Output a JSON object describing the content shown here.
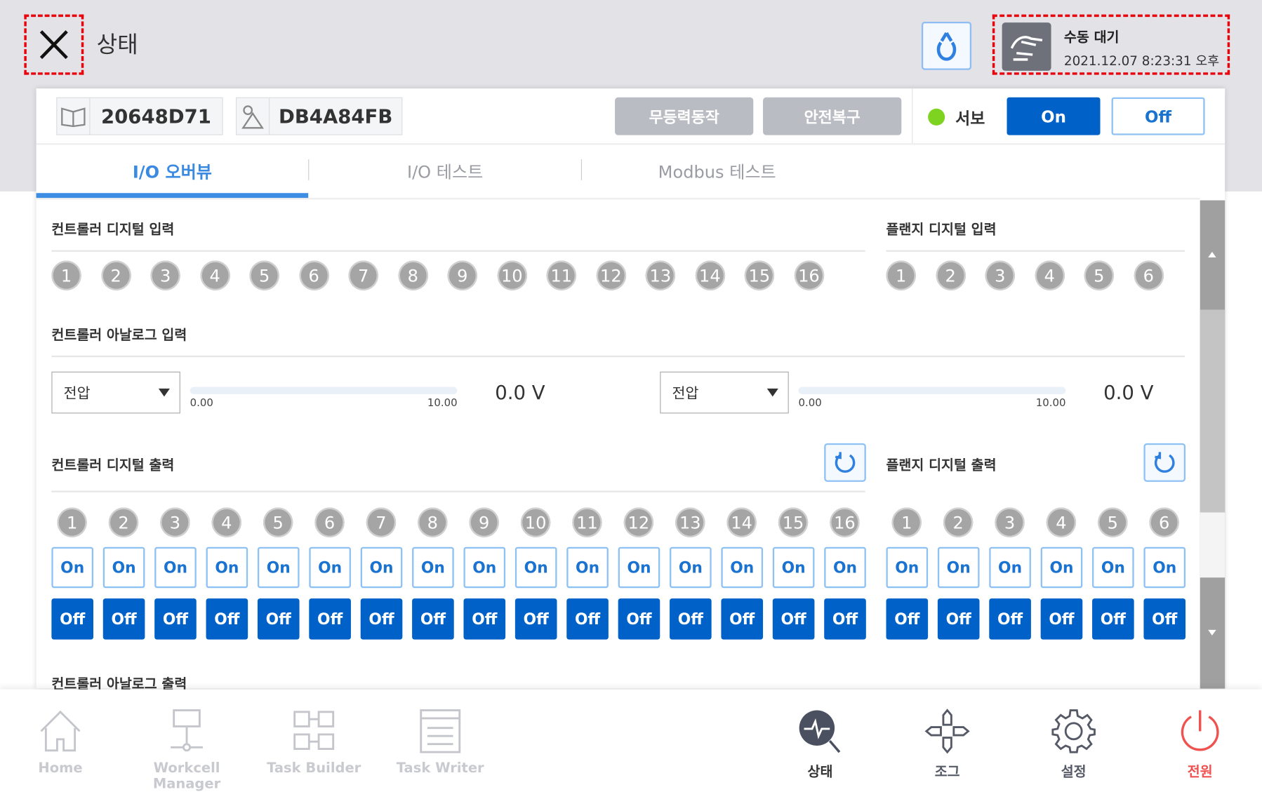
{
  "header": {
    "title": "상태",
    "status": "수동 대기",
    "datetime": "2021.12.07 8:23:31 오후",
    "close_icon": "close-icon",
    "refresh_icon": "refresh-icon",
    "hand_icon": "hand-icon"
  },
  "toolbar": {
    "controller_id": "DB4A84FB",
    "robot_id": "20648D71",
    "btn_free_drive": "무등력동작",
    "btn_safety_recover": "안전복구",
    "servo_label": "서보",
    "servo_on": "On",
    "servo_off": "Off",
    "servo_status_color": "#7ed321"
  },
  "tabs": [
    {
      "label": "I/O 오버뷰",
      "active": true
    },
    {
      "label": "I/O 테스트",
      "active": false
    },
    {
      "label": "Modbus 테스트",
      "active": false
    }
  ],
  "sections": {
    "ctrl_din": {
      "title": "컨트롤러 디지털 입력",
      "channels": [
        "1",
        "2",
        "3",
        "4",
        "5",
        "6",
        "7",
        "8",
        "9",
        "10",
        "11",
        "12",
        "13",
        "14",
        "15",
        "16"
      ]
    },
    "flange_din": {
      "title": "플랜지 디지털 입력",
      "channels": [
        "1",
        "2",
        "3",
        "4",
        "5",
        "6"
      ]
    },
    "ctrl_ain": {
      "title": "컨트롤러 아날로그 입력",
      "inputs": [
        {
          "mode": "전압",
          "min": "0.00",
          "max": "10.00",
          "value": "0.0 V",
          "level": 0
        },
        {
          "mode": "전압",
          "min": "0.00",
          "max": "10.00",
          "value": "0.0 V",
          "level": 0
        }
      ]
    },
    "ctrl_dout": {
      "title": "컨트롤러 디지털 출력",
      "channels": [
        "1",
        "2",
        "3",
        "4",
        "5",
        "6",
        "7",
        "8",
        "9",
        "10",
        "11",
        "12",
        "13",
        "14",
        "15",
        "16"
      ],
      "on": "On",
      "off": "Off"
    },
    "flange_dout": {
      "title": "플랜지 디지털 출력",
      "channels": [
        "1",
        "2",
        "3",
        "4",
        "5",
        "6"
      ],
      "on": "On",
      "off": "Off"
    },
    "ctrl_aout": {
      "title": "컨트롤러 아날로그 출력"
    }
  },
  "nav": [
    {
      "label": "Home",
      "icon": "home-icon",
      "state": "disabled"
    },
    {
      "label": "Workcell Manager",
      "icon": "workcell-icon",
      "state": "disabled"
    },
    {
      "label": "Task Builder",
      "icon": "task-builder-icon",
      "state": "disabled"
    },
    {
      "label": "Task Writer",
      "icon": "task-writer-icon",
      "state": "disabled"
    },
    {
      "label": "상태",
      "icon": "status-icon",
      "state": "active"
    },
    {
      "label": "조그",
      "icon": "jog-icon",
      "state": "normal"
    },
    {
      "label": "설정",
      "icon": "settings-icon",
      "state": "normal"
    },
    {
      "label": "전원",
      "icon": "power-icon",
      "state": "power"
    }
  ],
  "colors": {
    "primary": "#0062c9",
    "accent": "#3d8de4",
    "power": "#f0524f"
  }
}
